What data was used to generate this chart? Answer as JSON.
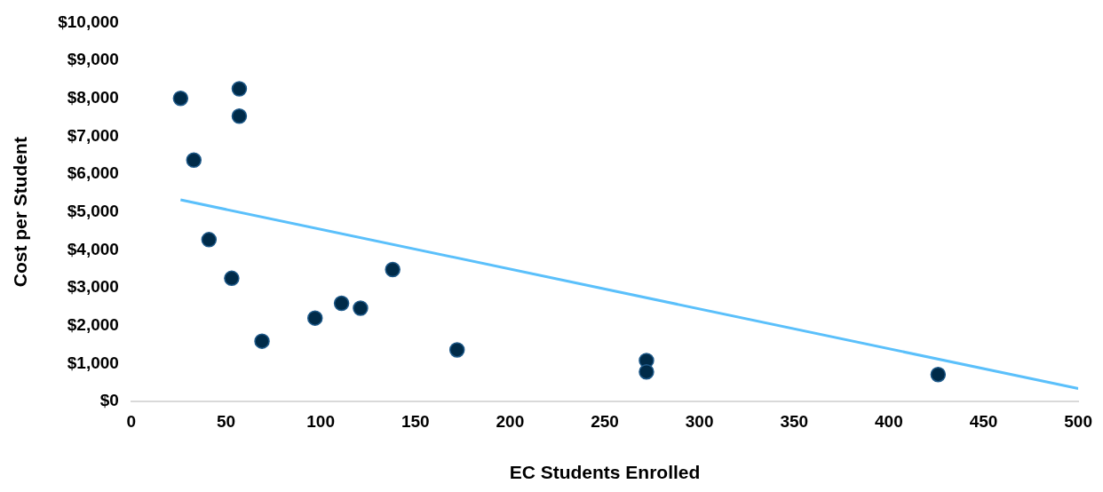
{
  "chart_data": {
    "type": "scatter",
    "xlabel": "EC Students Enrolled",
    "ylabel": "Cost per Student",
    "xlim": [
      0,
      500
    ],
    "xticks": [
      0,
      50,
      100,
      150,
      200,
      250,
      300,
      350,
      400,
      450,
      500
    ],
    "ylim": [
      0,
      10000
    ],
    "yticks": [
      {
        "value": 0,
        "label": "$0"
      },
      {
        "value": 1000,
        "label": "$1,000"
      },
      {
        "value": 2000,
        "label": "$2,000"
      },
      {
        "value": 3000,
        "label": "$3,000"
      },
      {
        "value": 4000,
        "label": "$4,000"
      },
      {
        "value": 5000,
        "label": "$5,000"
      },
      {
        "value": 6000,
        "label": "$6,000"
      },
      {
        "value": 7000,
        "label": "$7,000"
      },
      {
        "value": 8000,
        "label": "$8,000"
      },
      {
        "value": 9000,
        "label": "$9,000"
      },
      {
        "value": 10000,
        "label": "$10,000"
      }
    ],
    "grid": false,
    "legend": false,
    "series": [
      {
        "marker": "circle",
        "color": "#002b49",
        "x": [
          26,
          57,
          57,
          33,
          41,
          53,
          69,
          97,
          111,
          121,
          138,
          172,
          272,
          272,
          426
        ],
        "values": [
          8000,
          8250,
          7530,
          6370,
          4270,
          3250,
          1590,
          2200,
          2590,
          2460,
          3480,
          1360,
          1080,
          780,
          710
        ]
      },
      {
        "type": "line",
        "color": "#5bc0fb",
        "x": [
          26,
          500
        ],
        "values": [
          5320,
          340
        ]
      }
    ]
  }
}
